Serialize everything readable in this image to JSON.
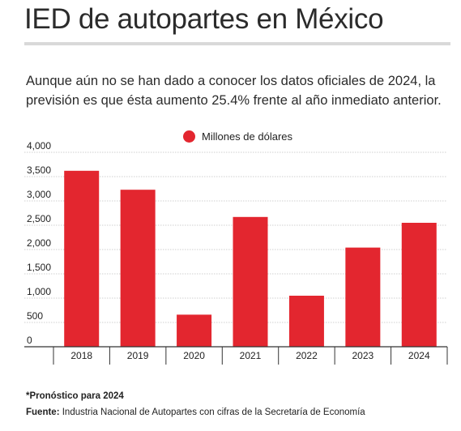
{
  "header": {
    "title": "IED de autopartes en México",
    "subtitle": "Aunque aún no se han dado a conocer los datos oficiales de 2024, la previsión es que ésta aumento 25.4% frente al año inmediato anterior."
  },
  "chart_data": {
    "type": "bar",
    "categories": [
      "2018",
      "2019",
      "2020",
      "2021",
      "2022",
      "2023",
      "2024"
    ],
    "series": [
      {
        "name": "Millones de dólares",
        "values": [
          3620,
          3230,
          660,
          2670,
          1050,
          2040,
          2550
        ]
      }
    ],
    "ylim": [
      0,
      4000
    ],
    "yticks": [
      "0",
      "500",
      "1,000",
      "1,500",
      "2,000",
      "2,500",
      "3,000",
      "3,500",
      "4,000"
    ],
    "ytick_values": [
      0,
      500,
      1000,
      1500,
      2000,
      2500,
      3000,
      3500,
      4000
    ],
    "grid": true,
    "legend": "top-center",
    "bar_color": "#e3262f"
  },
  "footer": {
    "note": "*Pronóstico para 2024",
    "source_label": "Fuente:",
    "source_text": " Industria Nacional de Autopartes con cifras de la Secretaría de Economía"
  }
}
